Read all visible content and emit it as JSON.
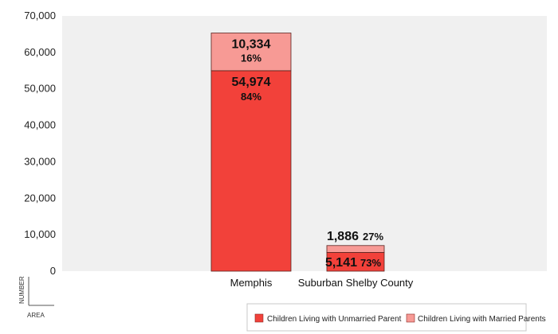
{
  "chart_data": {
    "type": "bar",
    "stacked": true,
    "categories": [
      "Memphis",
      "Suburban Shelby County"
    ],
    "series": [
      {
        "name": "Children Living with Unmarried Parent",
        "values": [
          54974,
          5141
        ],
        "value_labels": [
          "54,974",
          "5,141"
        ],
        "percent_labels": [
          "84%",
          "73%"
        ],
        "color": "#f2413a"
      },
      {
        "name": "Children Living with Married Parents",
        "values": [
          10334,
          1886
        ],
        "value_labels": [
          "10,334",
          "1,886"
        ],
        "percent_labels": [
          "16%",
          "27%"
        ],
        "color": "#f79a95"
      }
    ],
    "ylim": [
      0,
      70000
    ],
    "yticks": [
      0,
      10000,
      20000,
      30000,
      40000,
      50000,
      60000,
      70000
    ],
    "ytick_labels": [
      "0",
      "10,000",
      "20,000",
      "30,000",
      "40,000",
      "50,000",
      "60,000",
      "70,000"
    ],
    "ylabel": "NUMBER",
    "xlabel": "AREA",
    "legend_position": "bottom-right",
    "plot_background": "#f0f0f0",
    "grid": false
  }
}
